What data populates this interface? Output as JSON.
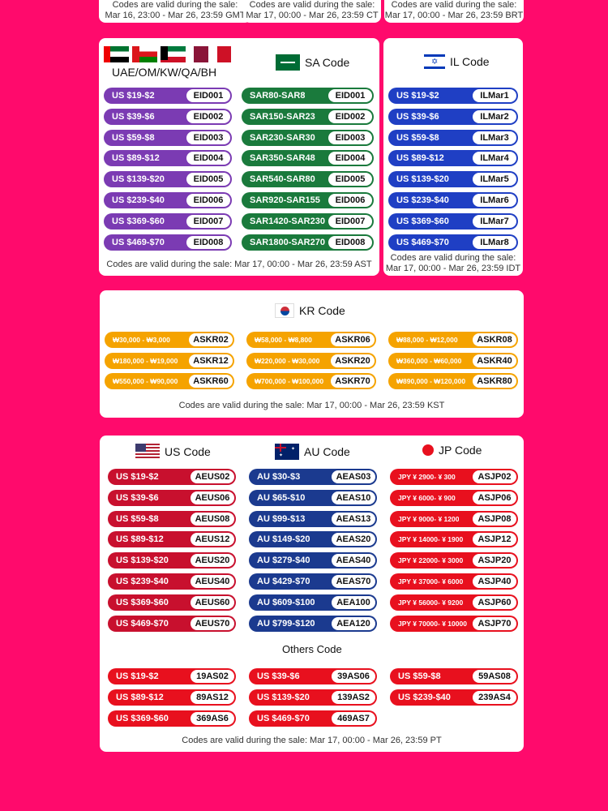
{
  "top_notes": [
    "Codes are valid during the sale:\nMar 16, 23:00 - Mar 26, 23:59 GMT",
    "Codes are valid during the sale:\nMar 17, 00:00 - Mar 26, 23:59 CT",
    "Codes are valid during the sale:\nMar 17, 00:00 - Mar 26, 23:59 BRT"
  ],
  "colors": {
    "background": "#ff0a6c",
    "purple": "#7b3bb3",
    "green": "#1a7a3c",
    "blue": "#1f3fc4",
    "orange": "#f5a300",
    "red": "#c8102e",
    "navy": "#1b3a8f",
    "bright_red": "#e8101e"
  },
  "gulf": {
    "title": "UAE/OM/KW/QA/BH",
    "rows": [
      {
        "label": "US $19-$2",
        "code": "EID001"
      },
      {
        "label": "US $39-$6",
        "code": "EID002"
      },
      {
        "label": "US $59-$8",
        "code": "EID003"
      },
      {
        "label": "US $89-$12",
        "code": "EID004"
      },
      {
        "label": "US $139-$20",
        "code": "EID005"
      },
      {
        "label": "US $239-$40",
        "code": "EID006"
      },
      {
        "label": "US $369-$60",
        "code": "EID007"
      },
      {
        "label": "US $469-$70",
        "code": "EID008"
      }
    ]
  },
  "sa": {
    "title": "SA Code",
    "rows": [
      {
        "label": "SAR80-SAR8",
        "code": "EID001"
      },
      {
        "label": "SAR150-SAR23",
        "code": "EID002"
      },
      {
        "label": "SAR230-SAR30",
        "code": "EID003"
      },
      {
        "label": "SAR350-SAR48",
        "code": "EID004"
      },
      {
        "label": "SAR540-SAR80",
        "code": "EID005"
      },
      {
        "label": "SAR920-SAR155",
        "code": "EID006"
      },
      {
        "label": "SAR1420-SAR230",
        "code": "EID007"
      },
      {
        "label": "SAR1800-SAR270",
        "code": "EID008"
      }
    ]
  },
  "gulf_note": "Codes are valid during the sale: Mar 17, 00:00 - Mar 26, 23:59 AST",
  "il": {
    "title": "IL Code",
    "rows": [
      {
        "label": "US $19-$2",
        "code": "ILMar1"
      },
      {
        "label": "US $39-$6",
        "code": "ILMar2"
      },
      {
        "label": "US $59-$8",
        "code": "ILMar3"
      },
      {
        "label": "US $89-$12",
        "code": "ILMar4"
      },
      {
        "label": "US $139-$20",
        "code": "ILMar5"
      },
      {
        "label": "US $239-$40",
        "code": "ILMar6"
      },
      {
        "label": "US $369-$60",
        "code": "ILMar7"
      },
      {
        "label": "US $469-$70",
        "code": "ILMar8"
      }
    ],
    "note": "Codes are valid during the sale:\nMar 17, 00:00 - Mar 26, 23:59 IDT"
  },
  "kr": {
    "title": "KR Code",
    "rows": [
      {
        "label": "₩30,000 - ₩3,000",
        "code": "ASKR02"
      },
      {
        "label": "₩58,000 - ₩8,800",
        "code": "ASKR06"
      },
      {
        "label": "₩88,000 - ₩12,000",
        "code": "ASKR08"
      },
      {
        "label": "₩180,000 - ₩19,000",
        "code": "ASKR12"
      },
      {
        "label": "₩220,000 - ₩30,000",
        "code": "ASKR20"
      },
      {
        "label": "₩360,000 - ₩60,000",
        "code": "ASKR40"
      },
      {
        "label": "₩550,000 - ₩90,000",
        "code": "ASKR60"
      },
      {
        "label": "₩700,000 - ₩100,000",
        "code": "ASKR70"
      },
      {
        "label": "₩890,000 - ₩120,000",
        "code": "ASKR80"
      }
    ],
    "note": "Codes are valid during the sale: Mar 17, 00:00 - Mar 26, 23:59 KST"
  },
  "us": {
    "title": "US Code",
    "rows": [
      {
        "label": "US $19-$2",
        "code": "AEUS02"
      },
      {
        "label": "US $39-$6",
        "code": "AEUS06"
      },
      {
        "label": "US $59-$8",
        "code": "AEUS08"
      },
      {
        "label": "US $89-$12",
        "code": "AEUS12"
      },
      {
        "label": "US $139-$20",
        "code": "AEUS20"
      },
      {
        "label": "US $239-$40",
        "code": "AEUS40"
      },
      {
        "label": "US $369-$60",
        "code": "AEUS60"
      },
      {
        "label": "US $469-$70",
        "code": "AEUS70"
      }
    ]
  },
  "au": {
    "title": "AU Code",
    "rows": [
      {
        "label": "AU $30-$3",
        "code": "AEAS03"
      },
      {
        "label": "AU $65-$10",
        "code": "AEAS10"
      },
      {
        "label": "AU $99-$13",
        "code": "AEAS13"
      },
      {
        "label": "AU $149-$20",
        "code": "AEAS20"
      },
      {
        "label": "AU $279-$40",
        "code": "AEAS40"
      },
      {
        "label": "AU $429-$70",
        "code": "AEAS70"
      },
      {
        "label": "AU $609-$100",
        "code": "AEA100"
      },
      {
        "label": "AU $799-$120",
        "code": "AEA120"
      }
    ]
  },
  "jp": {
    "title": "JP Code",
    "rows": [
      {
        "label": "JPY ¥ 2900- ¥ 300",
        "code": "ASJP02"
      },
      {
        "label": "JPY ¥ 6000- ¥ 900",
        "code": "ASJP06"
      },
      {
        "label": "JPY ¥ 9000- ¥ 1200",
        "code": "ASJP08"
      },
      {
        "label": "JPY ¥ 14000- ¥ 1900",
        "code": "ASJP12"
      },
      {
        "label": "JPY ¥ 22000- ¥ 3000",
        "code": "ASJP20"
      },
      {
        "label": "JPY ¥ 37000- ¥ 6000",
        "code": "ASJP40"
      },
      {
        "label": "JPY ¥ 56000- ¥ 9200",
        "code": "ASJP60"
      },
      {
        "label": "JPY ¥ 70000- ¥ 10000",
        "code": "ASJP70"
      }
    ]
  },
  "others": {
    "title": "Others Code",
    "rows": [
      {
        "label": "US $19-$2",
        "code": "19AS02"
      },
      {
        "label": "US $39-$6",
        "code": "39AS06"
      },
      {
        "label": "US $59-$8",
        "code": "59AS08"
      },
      {
        "label": "US $89-$12",
        "code": "89AS12"
      },
      {
        "label": "US $139-$20",
        "code": "139AS2"
      },
      {
        "label": "US $239-$40",
        "code": "239AS4"
      },
      {
        "label": "US $369-$60",
        "code": "369AS6"
      },
      {
        "label": "US $469-$70",
        "code": "469AS7"
      }
    ]
  },
  "bottom_note": "Codes are valid during the sale: Mar 17, 00:00 - Mar 26, 23:59 PT"
}
